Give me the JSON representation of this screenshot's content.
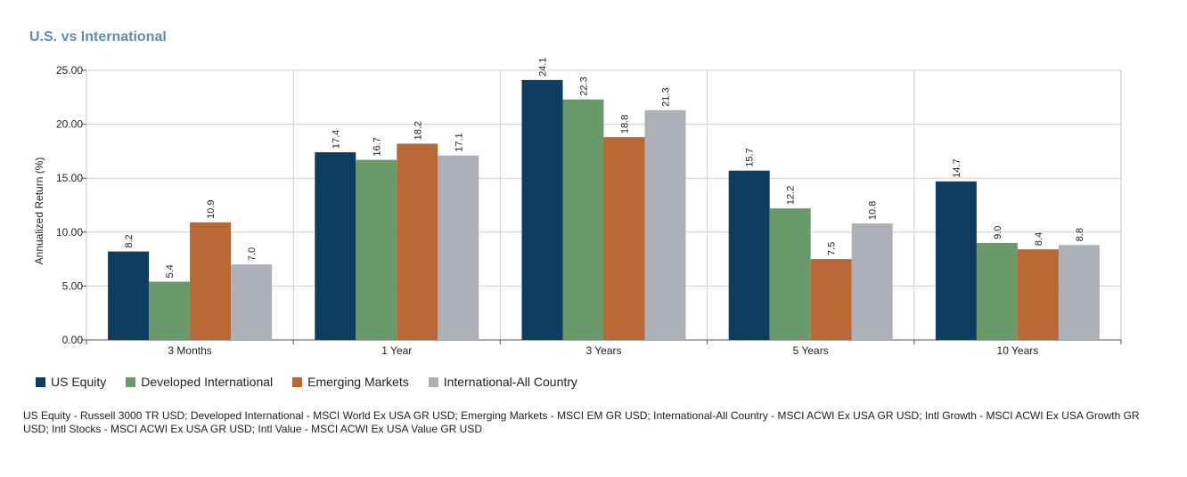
{
  "title": "U.S. vs International",
  "chart_data": {
    "type": "bar",
    "title": "U.S. vs International",
    "xlabel": "",
    "ylabel": "Annualized Return (%)",
    "ylim": [
      0,
      25
    ],
    "yticks": [
      "0.00",
      "5.00",
      "10.00",
      "15.00",
      "20.00",
      "25.00"
    ],
    "ytick_values": [
      0,
      5,
      10,
      15,
      20,
      25
    ],
    "grid": true,
    "legend_position": "bottom-left",
    "categories": [
      "3 Months",
      "1 Year",
      "3 Years",
      "5 Years",
      "10 Years"
    ],
    "series": [
      {
        "name": "US Equity",
        "color": "#0f3d5f",
        "values": [
          8.2,
          17.4,
          24.1,
          15.7,
          14.7
        ],
        "labels": [
          "8.2",
          "17.4",
          "24.1",
          "15.7",
          "14.7"
        ]
      },
      {
        "name": "Developed International",
        "color": "#6a9a6a",
        "values": [
          5.4,
          16.7,
          22.3,
          12.2,
          9.0
        ],
        "labels": [
          "5.4",
          "16.7",
          "22.3",
          "12.2",
          "9.0"
        ]
      },
      {
        "name": "Emerging Markets",
        "color": "#b96735",
        "values": [
          10.9,
          18.2,
          18.8,
          7.5,
          8.4
        ],
        "labels": [
          "10.9",
          "18.2",
          "18.8",
          "7.5",
          "8.4"
        ]
      },
      {
        "name": "International-All Country",
        "color": "#aeb0b8",
        "values": [
          7.0,
          17.1,
          21.3,
          10.8,
          8.8
        ],
        "labels": [
          "7.0",
          "17.1",
          "21.3",
          "10.8",
          "8.8"
        ]
      }
    ]
  },
  "legend": {
    "items": [
      {
        "label": "US Equity",
        "color": "#0f3d5f"
      },
      {
        "label": "Developed International",
        "color": "#6a9a6a"
      },
      {
        "label": "Emerging Markets",
        "color": "#b96735"
      },
      {
        "label": "International-All Country",
        "color": "#aeb0b8"
      }
    ]
  },
  "footnote": "US Equity - Russell 3000 TR USD; Developed International - MSCI World Ex USA GR USD; Emerging Markets - MSCI EM GR USD; International-All Country - MSCI ACWI Ex USA GR USD; Intl Growth - MSCI ACWI Ex USA Growth GR USD; Intl Stocks - MSCI ACWI Ex USA GR USD; Intl Value - MSCI ACWI Ex USA Value GR USD"
}
